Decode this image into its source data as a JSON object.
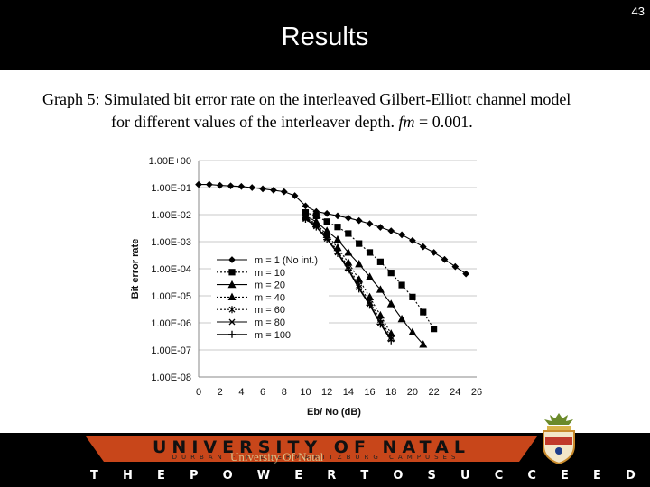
{
  "slide": {
    "number": "43",
    "title": "Results",
    "caption_line1": "Graph 5: Simulated bit error rate on the interleaved Gilbert-Elliott channel model",
    "caption_line2_prefix": "for different values of the interleaver depth. ",
    "caption_line2_italic": "fm",
    "caption_line2_suffix": " = 0.001."
  },
  "footer": {
    "university": "UNIVERSITY OF NATAL",
    "campuses": "DURBAN · PIETERMARITZBURG CAMPUSES",
    "watermark": "University Of Natal",
    "motto": [
      "T",
      "H",
      "E",
      "P",
      "O",
      "W",
      "E",
      "R",
      "T",
      "O",
      "S",
      "U",
      "C",
      "C",
      "E",
      "E",
      "D"
    ],
    "colors": {
      "banner": "#c8461a",
      "background": "#000000"
    }
  },
  "chart_data": {
    "type": "line",
    "xlabel": "Eb/ No (dB)",
    "ylabel": "Bit error rate",
    "xlim": [
      0,
      26
    ],
    "x_ticks": [
      "0",
      "2",
      "4",
      "6",
      "8",
      "10",
      "12",
      "14",
      "16",
      "18",
      "20",
      "22",
      "24",
      "26"
    ],
    "y_scale": "log",
    "ylim": [
      1e-08,
      1
    ],
    "y_ticks": [
      "1.00E+00",
      "1.00E-01",
      "1.00E-02",
      "1.00E-03",
      "1.00E-04",
      "1.00E-05",
      "1.00E-06",
      "1.00E-07",
      "1.00E-08"
    ],
    "grid": true,
    "legend": "lower-left",
    "series": [
      {
        "name": "m = 1 (No int.)",
        "marker": "diamond",
        "dash": "solid",
        "x": [
          0,
          1,
          2,
          3,
          4,
          5,
          6,
          7,
          8,
          9,
          10,
          11,
          12,
          13,
          14,
          15,
          16,
          17,
          18,
          19,
          20,
          21,
          22,
          23,
          24,
          25
        ],
        "y": [
          0.13,
          0.13,
          0.12,
          0.115,
          0.11,
          0.1,
          0.09,
          0.08,
          0.07,
          0.05,
          0.021,
          0.013,
          0.011,
          0.009,
          0.0075,
          0.006,
          0.0046,
          0.0034,
          0.0025,
          0.0018,
          0.0011,
          0.00065,
          0.0004,
          0.00022,
          0.00012,
          6.5e-05
        ]
      },
      {
        "name": "m = 10",
        "marker": "square",
        "dash": "dotted",
        "x": [
          10,
          11,
          12,
          13,
          14,
          15,
          16,
          17,
          18,
          19,
          20,
          21,
          22
        ],
        "y": [
          0.012,
          0.009,
          0.0055,
          0.0035,
          0.002,
          0.00085,
          0.0004,
          0.00018,
          7e-05,
          2.5e-05,
          9e-06,
          2.5e-06,
          6e-07
        ]
      },
      {
        "name": "m = 20",
        "marker": "triangle",
        "dash": "solid",
        "x": [
          10,
          11,
          12,
          13,
          14,
          15,
          16,
          17,
          18,
          19,
          20,
          21
        ],
        "y": [
          0.009,
          0.0055,
          0.0025,
          0.0012,
          0.0004,
          0.00015,
          5e-05,
          1.7e-05,
          5e-06,
          1.4e-06,
          4.5e-07,
          1.6e-07
        ]
      },
      {
        "name": "m = 40",
        "marker": "triangle",
        "dash": "dotted",
        "x": [
          10,
          11,
          12,
          13,
          14,
          15,
          16,
          17,
          18
        ],
        "y": [
          0.008,
          0.0045,
          0.0018,
          0.0006,
          0.00017,
          4e-05,
          9e-06,
          1.9e-06,
          4e-07
        ]
      },
      {
        "name": "m = 60",
        "marker": "star",
        "dash": "dotted",
        "x": [
          10,
          11,
          12,
          13,
          14,
          15,
          16,
          17,
          18
        ],
        "y": [
          0.0075,
          0.004,
          0.0015,
          0.00045,
          0.00012,
          2.5e-05,
          6e-06,
          1.3e-06,
          3e-07
        ]
      },
      {
        "name": "m = 80",
        "marker": "x",
        "dash": "solid",
        "x": [
          10,
          11,
          12,
          13,
          14,
          15,
          16,
          17,
          18
        ],
        "y": [
          0.007,
          0.0037,
          0.0013,
          0.0004,
          0.0001,
          2e-05,
          5e-06,
          1e-06,
          2.5e-07
        ]
      },
      {
        "name": "m = 100",
        "marker": "plus",
        "dash": "solid",
        "x": [
          10,
          11,
          12,
          13,
          14,
          15,
          16,
          17,
          18
        ],
        "y": [
          0.0068,
          0.0035,
          0.0012,
          0.00037,
          9e-05,
          1.8e-05,
          4.5e-06,
          9e-07,
          2.2e-07
        ]
      }
    ]
  }
}
